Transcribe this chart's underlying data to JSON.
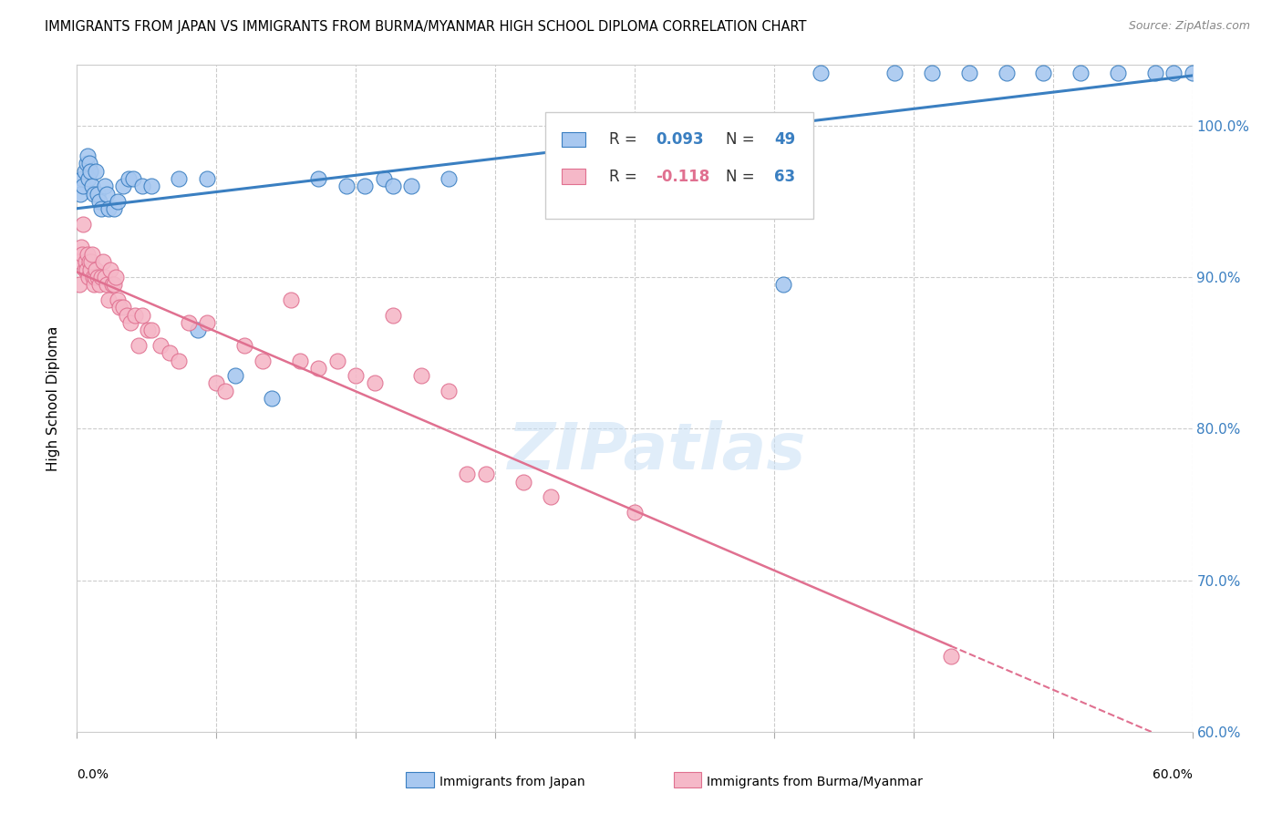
{
  "title": "IMMIGRANTS FROM JAPAN VS IMMIGRANTS FROM BURMA/MYANMAR HIGH SCHOOL DIPLOMA CORRELATION CHART",
  "source": "Source: ZipAtlas.com",
  "ylabel": "High School Diploma",
  "right_yticks": [
    60.0,
    70.0,
    80.0,
    90.0,
    100.0
  ],
  "xlim": [
    0.0,
    60.0
  ],
  "ylim": [
    60.0,
    104.0
  ],
  "R_japan": 0.093,
  "N_japan": 49,
  "R_burma": -0.118,
  "N_burma": 63,
  "color_japan": "#a8c8f0",
  "color_burma": "#f5b8c8",
  "trendline_japan_color": "#3a7fc1",
  "trendline_burma_color": "#e07090",
  "watermark": "ZIPatlas",
  "japan_x": [
    0.2,
    0.3,
    0.35,
    0.4,
    0.5,
    0.55,
    0.6,
    0.65,
    0.7,
    0.8,
    0.9,
    1.0,
    1.1,
    1.2,
    1.3,
    1.5,
    1.6,
    1.7,
    2.0,
    2.2,
    2.5,
    2.8,
    3.0,
    3.5,
    4.0,
    5.5,
    6.5,
    7.0,
    8.5,
    10.5,
    13.0,
    14.5,
    15.5,
    16.5,
    17.0,
    18.0,
    20.0,
    40.0,
    46.0,
    50.0,
    52.0,
    54.0,
    56.0,
    58.0,
    59.0,
    60.0,
    38.0,
    44.0,
    48.0
  ],
  "japan_y": [
    95.5,
    96.5,
    96.0,
    97.0,
    97.5,
    98.0,
    96.5,
    97.5,
    97.0,
    96.0,
    95.5,
    97.0,
    95.5,
    95.0,
    94.5,
    96.0,
    95.5,
    94.5,
    94.5,
    95.0,
    96.0,
    96.5,
    96.5,
    96.0,
    96.0,
    96.5,
    86.5,
    96.5,
    83.5,
    82.0,
    96.5,
    96.0,
    96.0,
    96.5,
    96.0,
    96.0,
    96.5,
    103.5,
    103.5,
    103.5,
    103.5,
    103.5,
    103.5,
    103.5,
    103.5,
    103.5,
    89.5,
    103.5,
    103.5
  ],
  "burma_x": [
    0.15,
    0.2,
    0.25,
    0.3,
    0.35,
    0.4,
    0.45,
    0.5,
    0.55,
    0.6,
    0.65,
    0.7,
    0.75,
    0.8,
    0.85,
    0.9,
    0.95,
    1.0,
    1.1,
    1.2,
    1.3,
    1.4,
    1.5,
    1.6,
    1.7,
    1.8,
    1.9,
    2.0,
    2.1,
    2.2,
    2.3,
    2.5,
    2.7,
    2.9,
    3.1,
    3.3,
    3.5,
    3.8,
    4.0,
    4.5,
    5.0,
    5.5,
    6.0,
    7.0,
    7.5,
    8.0,
    9.0,
    10.0,
    11.5,
    12.0,
    13.0,
    14.0,
    15.0,
    16.0,
    17.0,
    18.5,
    20.0,
    21.0,
    22.0,
    24.0,
    25.5,
    30.0,
    47.0
  ],
  "burma_y": [
    89.5,
    91.0,
    92.0,
    91.5,
    93.5,
    90.5,
    91.0,
    90.5,
    91.5,
    90.0,
    91.0,
    90.5,
    91.0,
    91.5,
    90.0,
    89.5,
    90.0,
    90.5,
    90.0,
    89.5,
    90.0,
    91.0,
    90.0,
    89.5,
    88.5,
    90.5,
    89.5,
    89.5,
    90.0,
    88.5,
    88.0,
    88.0,
    87.5,
    87.0,
    87.5,
    85.5,
    87.5,
    86.5,
    86.5,
    85.5,
    85.0,
    84.5,
    87.0,
    87.0,
    83.0,
    82.5,
    85.5,
    84.5,
    88.5,
    84.5,
    84.0,
    84.5,
    83.5,
    83.0,
    87.5,
    83.5,
    82.5,
    77.0,
    77.0,
    76.5,
    75.5,
    74.5,
    65.0
  ]
}
